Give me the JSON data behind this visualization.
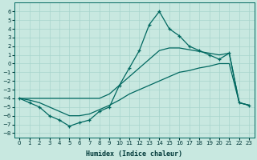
{
  "xlabel": "Humidex (Indice chaleur)",
  "background_color": "#c8e8e0",
  "grid_color": "#a8d4cc",
  "line_color": "#006860",
  "xlim": [
    -0.5,
    23.5
  ],
  "ylim": [
    -8.5,
    7.0
  ],
  "series_spike": {
    "x": [
      0,
      1,
      2,
      3,
      4,
      5,
      6,
      7,
      8,
      9,
      10,
      11,
      12,
      13,
      14,
      15,
      16,
      17,
      18,
      19,
      20,
      21,
      22,
      23
    ],
    "y": [
      -4,
      -4.5,
      -5,
      -6,
      -6.5,
      -7.2,
      -6.8,
      -6.5,
      -5.5,
      -5,
      -2.5,
      -0.5,
      1.5,
      4.5,
      6.0,
      4.0,
      3.2,
      2.0,
      1.5,
      1.0,
      0.5,
      1.2,
      -4.5,
      -4.8
    ]
  },
  "series_upper": {
    "x": [
      0,
      1,
      2,
      3,
      4,
      5,
      6,
      7,
      8,
      9,
      10,
      11,
      12,
      13,
      14,
      15,
      16,
      17,
      18,
      19,
      20,
      21,
      22,
      23
    ],
    "y": [
      -4,
      -4,
      -4,
      -4,
      -4,
      -4,
      -4,
      -4,
      -4,
      -3.5,
      -2.5,
      -1.5,
      -0.5,
      0.5,
      1.5,
      1.8,
      1.8,
      1.6,
      1.4,
      1.2,
      1.0,
      1.2,
      -4.5,
      -4.8
    ]
  },
  "series_lower": {
    "x": [
      0,
      1,
      2,
      3,
      4,
      5,
      6,
      7,
      8,
      9,
      10,
      11,
      12,
      13,
      14,
      15,
      16,
      17,
      18,
      19,
      20,
      21,
      22,
      23
    ],
    "y": [
      -4,
      -4.2,
      -4.5,
      -5,
      -5.5,
      -6,
      -6,
      -5.8,
      -5.3,
      -4.8,
      -4.2,
      -3.5,
      -3,
      -2.5,
      -2,
      -1.5,
      -1,
      -0.8,
      -0.5,
      -0.3,
      0,
      0,
      -4.5,
      -4.8
    ]
  },
  "yticks": [
    -8,
    -7,
    -6,
    -5,
    -4,
    -3,
    -2,
    -1,
    0,
    1,
    2,
    3,
    4,
    5,
    6
  ],
  "xticks": [
    0,
    1,
    2,
    3,
    4,
    5,
    6,
    7,
    8,
    9,
    10,
    11,
    12,
    13,
    14,
    15,
    16,
    17,
    18,
    19,
    20,
    21,
    22,
    23
  ],
  "xlabel_fontsize": 6,
  "tick_fontsize": 5
}
